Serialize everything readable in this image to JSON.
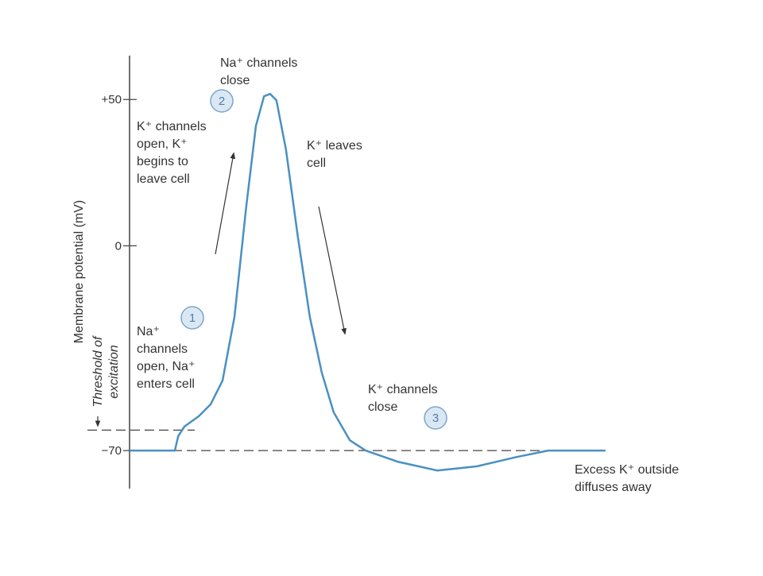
{
  "chart_data": {
    "type": "line",
    "y_label": "Membrane potential (mV)",
    "x": [
      0,
      0.95,
      1.02,
      1.15,
      1.45,
      1.7,
      1.95,
      2.2,
      2.45,
      2.65,
      2.82,
      2.95,
      3.08,
      3.28,
      3.53,
      3.78,
      4.03,
      4.28,
      4.62,
      4.95,
      5.62,
      6.45,
      7.28,
      8.12,
      8.78,
      9.98
    ],
    "values": [
      -70,
      -70,
      -65.1,
      -61.8,
      -58.3,
      -54.2,
      -46.1,
      -24.3,
      13.8,
      41,
      51.1,
      51.9,
      49.7,
      32.9,
      3,
      -24.3,
      -43.3,
      -56.9,
      -66.5,
      -70,
      -73.8,
      -76.8,
      -75.4,
      -72.2,
      -70,
      -70
    ],
    "color": "#4a90c2",
    "xlim": [
      0,
      10
    ],
    "ylim": [
      -83,
      65
    ],
    "yticks": [
      {
        "value": 50,
        "label": "+50"
      },
      0,
      {
        "value": -70,
        "label": "−70"
      }
    ],
    "reference_lines": [
      {
        "value": -63,
        "label": [
          "Threshold of",
          "excitation"
        ]
      },
      {
        "value": -70
      }
    ],
    "annotations": [
      [
        "Na⁺ channels",
        "close"
      ],
      [
        "K⁺ channels",
        "open, K⁺",
        "begins to",
        "leave cell"
      ],
      [
        "K⁺ leaves",
        "cell"
      ],
      [
        "Na⁺",
        "channels",
        "open, Na⁺",
        "enters cell"
      ],
      [
        "K⁺ channels",
        "close"
      ],
      [
        "Excess K⁺ outside",
        "diffuses away"
      ]
    ],
    "steps": [
      "2",
      "1",
      "3"
    ]
  }
}
